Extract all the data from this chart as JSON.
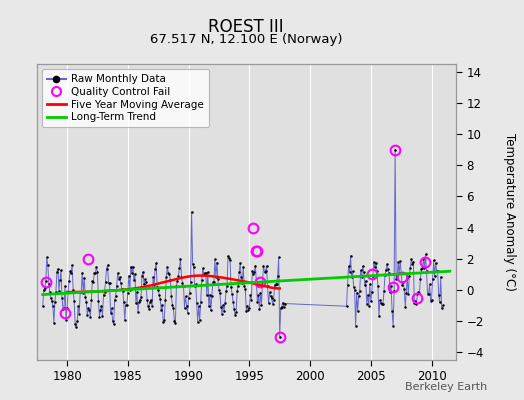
{
  "title": "ROEST III",
  "subtitle": "67.517 N, 12.100 E (Norway)",
  "ylabel_right": "Temperature Anomaly (°C)",
  "watermark": "Berkeley Earth",
  "xlim": [
    1977.5,
    2012.0
  ],
  "ylim": [
    -4.5,
    14.5
  ],
  "yticks_right": [
    -4,
    -2,
    0,
    2,
    4,
    6,
    8,
    10,
    12,
    14
  ],
  "xticks": [
    1980,
    1985,
    1990,
    1995,
    2000,
    2005,
    2010
  ],
  "bg_color": "#e0e0e0",
  "plot_bg_color": "#e0e0e0",
  "outer_bg_color": "#e8e8e8",
  "grid_color": "#ffffff",
  "raw_line_color": "#6666cc",
  "raw_dot_color": "#000000",
  "qc_color": "#ff00ff",
  "moving_avg_color": "#ff0000",
  "trend_color": "#00cc00",
  "trend_x": [
    1978.0,
    2011.5
  ],
  "trend_y": [
    -0.3,
    1.2
  ],
  "ma_nodes_x": [
    1980.0,
    1983.0,
    1986.0,
    1988.0,
    1990.5,
    1992.0,
    1993.5,
    1995.0,
    1996.5,
    1997.5
  ],
  "ma_nodes_y": [
    -0.15,
    -0.1,
    0.1,
    0.5,
    1.0,
    0.9,
    0.7,
    0.5,
    0.2,
    -0.1
  ],
  "qc_points": [
    [
      1978.25,
      0.5
    ],
    [
      1979.83,
      -1.5
    ],
    [
      1981.75,
      2.0
    ],
    [
      1995.33,
      4.0
    ],
    [
      1995.58,
      2.5
    ],
    [
      1995.67,
      2.5
    ],
    [
      1995.92,
      0.5
    ],
    [
      1997.5,
      -3.0
    ],
    [
      2005.08,
      1.0
    ],
    [
      2006.83,
      0.2
    ],
    [
      2007.0,
      9.0
    ],
    [
      2007.58,
      0.8
    ],
    [
      2008.83,
      -0.5
    ],
    [
      2009.42,
      1.8
    ]
  ]
}
